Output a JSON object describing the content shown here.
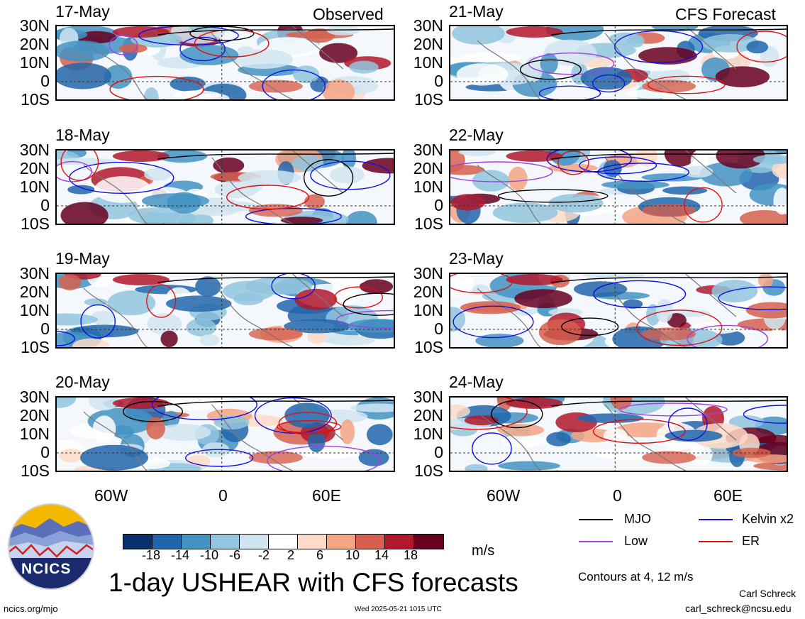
{
  "header_left": "Observed",
  "header_right": "CFS Forecast",
  "observed_dates": [
    "17-May",
    "18-May",
    "19-May",
    "20-May"
  ],
  "forecast_dates": [
    "21-May",
    "22-May",
    "23-May",
    "24-May"
  ],
  "lat_labels": [
    "30N",
    "20N",
    "10N",
    "0",
    "10S"
  ],
  "lon_labels": [
    "60W",
    "0",
    "60E"
  ],
  "colorbar": {
    "labels": [
      "-18",
      "-14",
      "-10",
      "-6",
      "-2",
      "2",
      "6",
      "10",
      "14",
      "18"
    ],
    "unit": "m/s",
    "colors": [
      "#08306b",
      "#2166ac",
      "#4393c3",
      "#92c5de",
      "#d1e5f0",
      "#ffffff",
      "#fddbc7",
      "#f4a582",
      "#d6604d",
      "#b2182b",
      "#67001f"
    ]
  },
  "legend": {
    "mjo": "MJO",
    "kelvin": "Kelvin x2",
    "low": "Low",
    "er": "ER",
    "colors": {
      "mjo": "#000000",
      "kelvin": "#1010e0",
      "low": "#a040e0",
      "er": "#e01010"
    },
    "contours_note": "Contours at 4, 12 m/s"
  },
  "title": "1-day USHEAR with CFS forecasts",
  "logo_text": "NCICS",
  "footer_left": "ncics.org/mjo",
  "footer_center": "Wed 2025-05-21 1015 UTC",
  "author": "Carl Schreck",
  "email": "carl_schreck@ncsu.edu"
}
